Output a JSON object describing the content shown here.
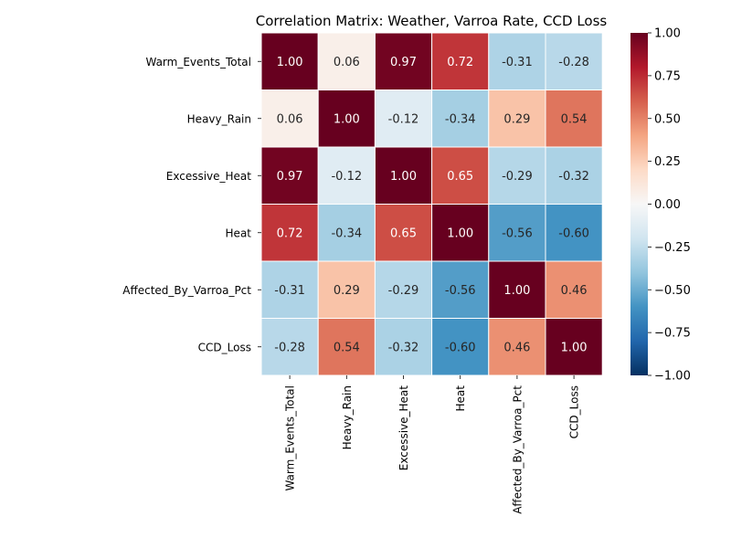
{
  "chart_data": {
    "type": "heatmap",
    "title": "Correlation Matrix: Weather, Varroa Rate, CCD Loss",
    "rows": [
      "Warm_Events_Total",
      "Heavy_Rain",
      "Excessive_Heat",
      "Heat",
      "Affected_By_Varroa_Pct",
      "CCD_Loss"
    ],
    "columns": [
      "Warm_Events_Total",
      "Heavy_Rain",
      "Excessive_Heat",
      "Heat",
      "Affected_By_Varroa_Pct",
      "CCD_Loss"
    ],
    "values": [
      [
        1.0,
        0.06,
        0.97,
        0.72,
        -0.31,
        -0.28
      ],
      [
        0.06,
        1.0,
        -0.12,
        -0.34,
        0.29,
        0.54
      ],
      [
        0.97,
        -0.12,
        1.0,
        0.65,
        -0.29,
        -0.32
      ],
      [
        0.72,
        -0.34,
        0.65,
        1.0,
        -0.56,
        -0.6
      ],
      [
        -0.31,
        0.29,
        -0.29,
        -0.56,
        1.0,
        0.46
      ],
      [
        -0.28,
        0.54,
        -0.32,
        -0.6,
        0.46,
        1.0
      ]
    ],
    "value_format": "2 decimals",
    "colormap": "RdBu_r",
    "vmin": -1.0,
    "vmax": 1.0,
    "colorbar_ticks": [
      "1.00",
      "0.75",
      "0.50",
      "0.25",
      "0.00",
      "−0.25",
      "−0.50",
      "−0.75",
      "−1.00"
    ],
    "colorbar_tick_values": [
      1.0,
      0.75,
      0.5,
      0.25,
      0.0,
      -0.25,
      -0.5,
      -0.75,
      -1.0
    ],
    "colorbar_placement": "right",
    "grid": false,
    "cell_border_color": "#ffffff"
  }
}
